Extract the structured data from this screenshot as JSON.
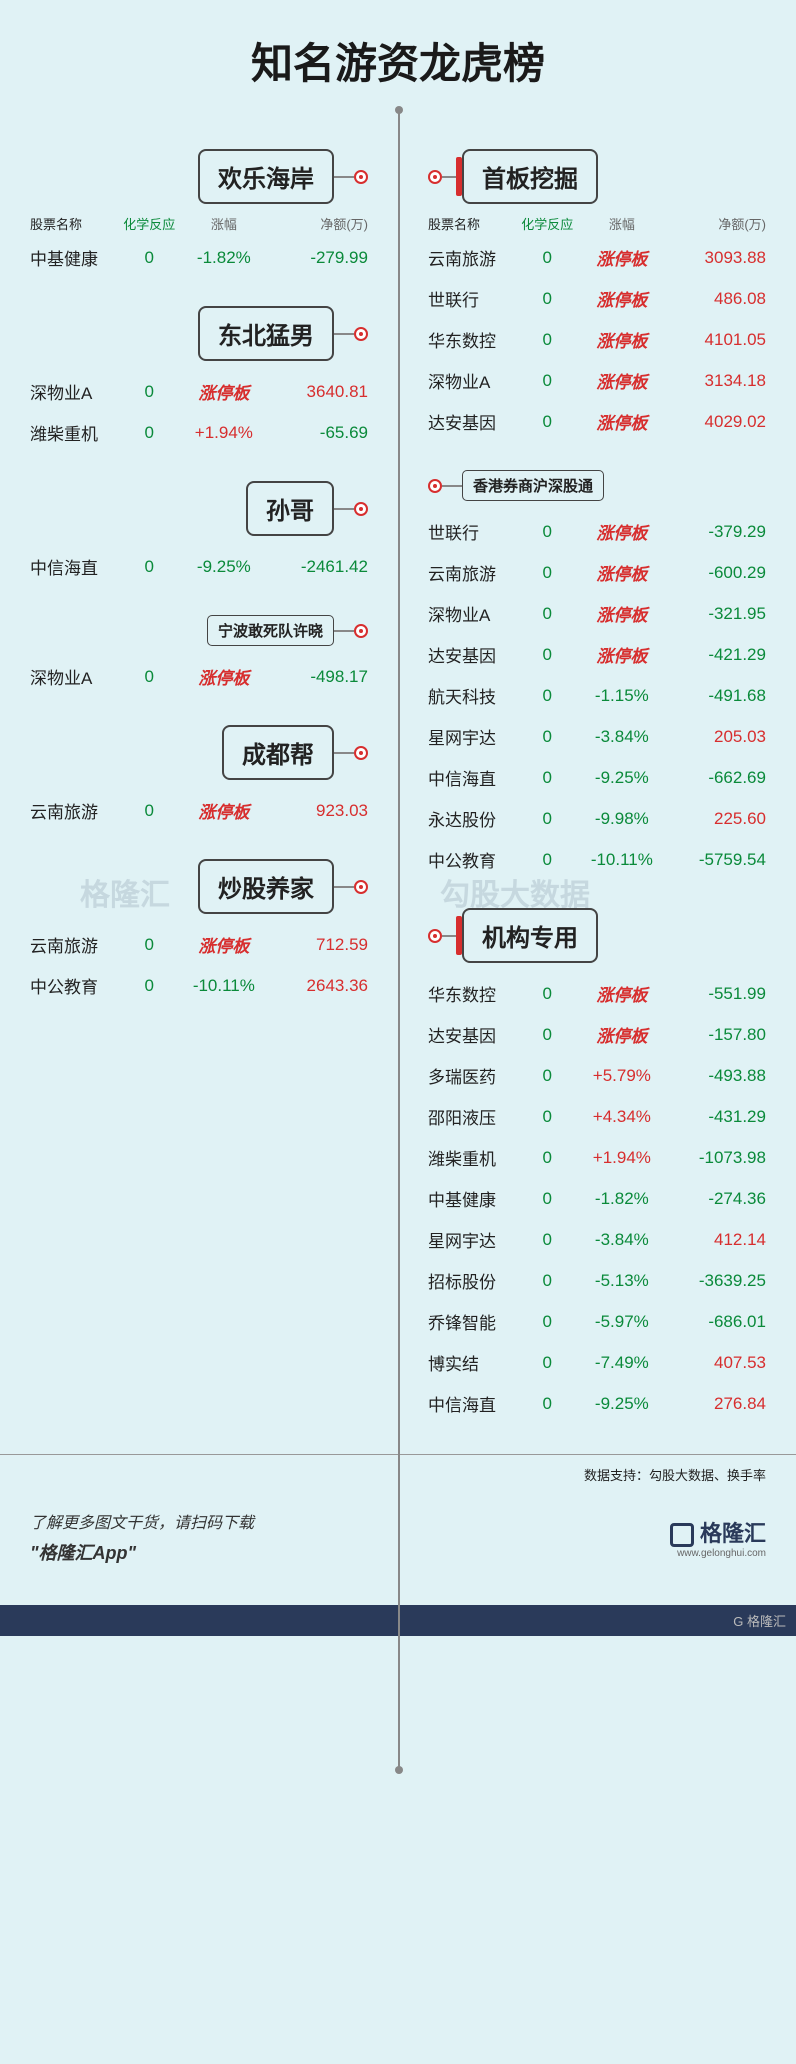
{
  "title": "知名游资龙虎榜",
  "colors": {
    "background": "#e0f2f5",
    "accent_red": "#d72e2e",
    "accent_green": "#0a8a3a",
    "line": "#888888",
    "text": "#222222"
  },
  "table_header": {
    "c1": "股票名称",
    "c2": "化学反应",
    "c3": "涨幅",
    "c4": "净额(万)"
  },
  "limit_up_label": "涨停板",
  "left_sections": [
    {
      "label": "欢乐海岸",
      "rows": [
        {
          "name": "中基健康",
          "react": "0",
          "pct": "-1.82%",
          "pct_cls": "green",
          "amt": "-279.99",
          "amt_cls": "green"
        }
      ]
    },
    {
      "label": "东北猛男",
      "rows": [
        {
          "name": "深物业A",
          "react": "0",
          "pct": "LIMIT",
          "pct_cls": "",
          "amt": "3640.81",
          "amt_cls": "red"
        },
        {
          "name": "潍柴重机",
          "react": "0",
          "pct": "+1.94%",
          "pct_cls": "red",
          "amt": "-65.69",
          "amt_cls": "green"
        }
      ]
    },
    {
      "label": "孙哥",
      "rows": [
        {
          "name": "中信海直",
          "react": "0",
          "pct": "-9.25%",
          "pct_cls": "green",
          "amt": "-2461.42",
          "amt_cls": "green"
        }
      ]
    },
    {
      "label": "宁波敢死队许晓",
      "small": true,
      "rows": [
        {
          "name": "深物业A",
          "react": "0",
          "pct": "LIMIT",
          "pct_cls": "",
          "amt": "-498.17",
          "amt_cls": "green"
        }
      ]
    },
    {
      "label": "成都帮",
      "rows": [
        {
          "name": "云南旅游",
          "react": "0",
          "pct": "LIMIT",
          "pct_cls": "",
          "amt": "923.03",
          "amt_cls": "red"
        }
      ]
    },
    {
      "label": "炒股养家",
      "rows": [
        {
          "name": "云南旅游",
          "react": "0",
          "pct": "LIMIT",
          "pct_cls": "",
          "amt": "712.59",
          "amt_cls": "red"
        },
        {
          "name": "中公教育",
          "react": "0",
          "pct": "-10.11%",
          "pct_cls": "green",
          "amt": "2643.36",
          "amt_cls": "red"
        }
      ]
    }
  ],
  "right_sections": [
    {
      "label": "首板挖掘",
      "redbar": true,
      "rows": [
        {
          "name": "云南旅游",
          "react": "0",
          "pct": "LIMIT",
          "amt": "3093.88",
          "amt_cls": "red"
        },
        {
          "name": "世联行",
          "react": "0",
          "pct": "LIMIT",
          "amt": "486.08",
          "amt_cls": "red"
        },
        {
          "name": "华东数控",
          "react": "0",
          "pct": "LIMIT",
          "amt": "4101.05",
          "amt_cls": "red"
        },
        {
          "name": "深物业A",
          "react": "0",
          "pct": "LIMIT",
          "amt": "3134.18",
          "amt_cls": "red"
        },
        {
          "name": "达安基因",
          "react": "0",
          "pct": "LIMIT",
          "amt": "4029.02",
          "amt_cls": "red"
        }
      ]
    },
    {
      "label": "香港券商沪深股通",
      "small": true,
      "rows": [
        {
          "name": "世联行",
          "react": "0",
          "pct": "LIMIT",
          "amt": "-379.29",
          "amt_cls": "green"
        },
        {
          "name": "云南旅游",
          "react": "0",
          "pct": "LIMIT",
          "amt": "-600.29",
          "amt_cls": "green"
        },
        {
          "name": "深物业A",
          "react": "0",
          "pct": "LIMIT",
          "amt": "-321.95",
          "amt_cls": "green"
        },
        {
          "name": "达安基因",
          "react": "0",
          "pct": "LIMIT",
          "amt": "-421.29",
          "amt_cls": "green"
        },
        {
          "name": "航天科技",
          "react": "0",
          "pct": "-1.15%",
          "pct_cls": "green",
          "amt": "-491.68",
          "amt_cls": "green"
        },
        {
          "name": "星网宇达",
          "react": "0",
          "pct": "-3.84%",
          "pct_cls": "green",
          "amt": "205.03",
          "amt_cls": "red"
        },
        {
          "name": "中信海直",
          "react": "0",
          "pct": "-9.25%",
          "pct_cls": "green",
          "amt": "-662.69",
          "amt_cls": "green"
        },
        {
          "name": "永达股份",
          "react": "0",
          "pct": "-9.98%",
          "pct_cls": "green",
          "amt": "225.60",
          "amt_cls": "red"
        },
        {
          "name": "中公教育",
          "react": "0",
          "pct": "-10.11%",
          "pct_cls": "green",
          "amt": "-5759.54",
          "amt_cls": "green"
        }
      ]
    },
    {
      "label": "机构专用",
      "redbar": true,
      "rows": [
        {
          "name": "华东数控",
          "react": "0",
          "pct": "LIMIT",
          "amt": "-551.99",
          "amt_cls": "green"
        },
        {
          "name": "达安基因",
          "react": "0",
          "pct": "LIMIT",
          "amt": "-157.80",
          "amt_cls": "green"
        },
        {
          "name": "多瑞医药",
          "react": "0",
          "pct": "+5.79%",
          "pct_cls": "red",
          "amt": "-493.88",
          "amt_cls": "green"
        },
        {
          "name": "邵阳液压",
          "react": "0",
          "pct": "+4.34%",
          "pct_cls": "red",
          "amt": "-431.29",
          "amt_cls": "green"
        },
        {
          "name": "潍柴重机",
          "react": "0",
          "pct": "+1.94%",
          "pct_cls": "red",
          "amt": "-1073.98",
          "amt_cls": "green"
        },
        {
          "name": "中基健康",
          "react": "0",
          "pct": "-1.82%",
          "pct_cls": "green",
          "amt": "-274.36",
          "amt_cls": "green"
        },
        {
          "name": "星网宇达",
          "react": "0",
          "pct": "-3.84%",
          "pct_cls": "green",
          "amt": "412.14",
          "amt_cls": "red"
        },
        {
          "name": "招标股份",
          "react": "0",
          "pct": "-5.13%",
          "pct_cls": "green",
          "amt": "-3639.25",
          "amt_cls": "green"
        },
        {
          "name": "乔锋智能",
          "react": "0",
          "pct": "-5.97%",
          "pct_cls": "green",
          "amt": "-686.01",
          "amt_cls": "green"
        },
        {
          "name": "博实结",
          "react": "0",
          "pct": "-7.49%",
          "pct_cls": "green",
          "amt": "407.53",
          "amt_cls": "red"
        },
        {
          "name": "中信海直",
          "react": "0",
          "pct": "-9.25%",
          "pct_cls": "green",
          "amt": "276.84",
          "amt_cls": "red"
        }
      ]
    }
  ],
  "data_support": "数据支持：勾股大数据、换手率",
  "footer": {
    "line1": "了解更多图文干货，请扫码下载",
    "line2": "\"格隆汇App\"",
    "logo_text": "格隆汇",
    "logo_url": "www.gelonghui.com"
  },
  "watermark1": "格隆汇",
  "watermark2": "勾股大数据",
  "bottom_bar": "G 格隆汇"
}
